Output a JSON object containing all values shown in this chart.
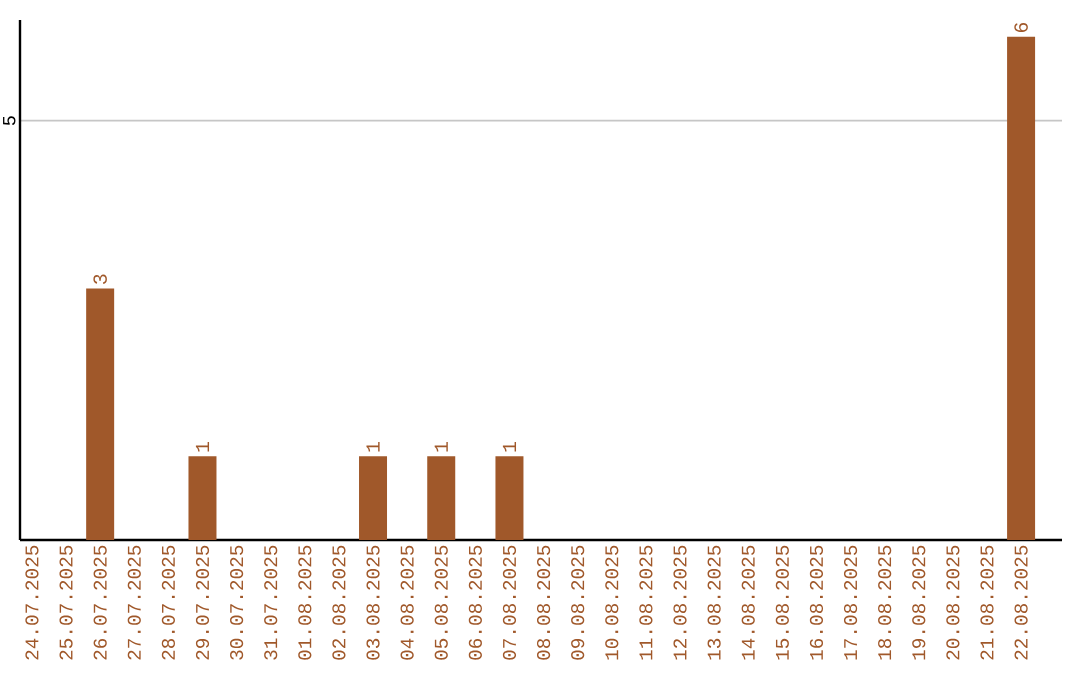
{
  "chart_data": {
    "type": "bar",
    "categories": [
      "24.07.2025",
      "25.07.2025",
      "26.07.2025",
      "27.07.2025",
      "28.07.2025",
      "29.07.2025",
      "30.07.2025",
      "31.07.2025",
      "01.08.2025",
      "02.08.2025",
      "03.08.2025",
      "04.08.2025",
      "05.08.2025",
      "06.08.2025",
      "07.08.2025",
      "08.08.2025",
      "09.08.2025",
      "10.08.2025",
      "11.08.2025",
      "12.08.2025",
      "13.08.2025",
      "14.08.2025",
      "15.08.2025",
      "16.08.2025",
      "17.08.2025",
      "18.08.2025",
      "19.08.2025",
      "20.08.2025",
      "21.08.2025",
      "22.08.2025"
    ],
    "values": [
      0,
      0,
      3,
      0,
      0,
      1,
      0,
      0,
      0,
      0,
      1,
      0,
      1,
      0,
      1,
      0,
      0,
      0,
      0,
      0,
      0,
      0,
      0,
      0,
      0,
      0,
      0,
      0,
      0,
      6
    ],
    "value_labels": [
      null,
      null,
      "3",
      null,
      null,
      "1",
      null,
      null,
      null,
      null,
      "1",
      null,
      "1",
      null,
      "1",
      null,
      null,
      null,
      null,
      null,
      null,
      null,
      null,
      null,
      null,
      null,
      null,
      null,
      null,
      "6"
    ],
    "color": "#a0582a",
    "ylim": [
      0,
      6.2
    ],
    "yticks": [
      5
    ],
    "grid": "y"
  }
}
